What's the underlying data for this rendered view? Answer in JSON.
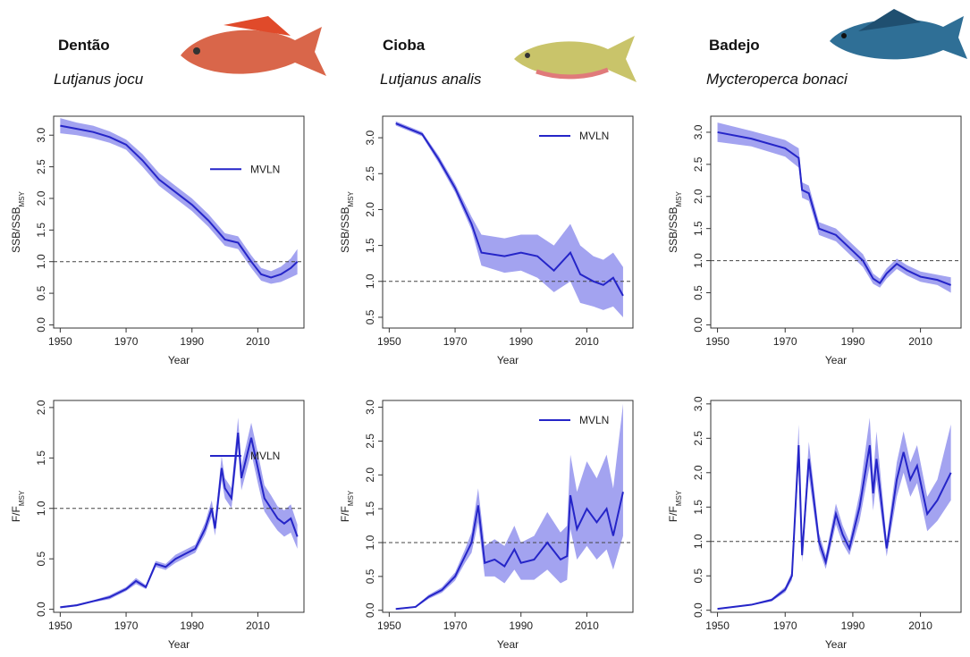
{
  "species": [
    {
      "name": "Dentão",
      "latin": "Lutjanus jocu"
    },
    {
      "name": "Cioba",
      "latin": "Lutjanus analis"
    },
    {
      "name": "Badejo",
      "latin": "Mycteroperca bonaci"
    }
  ],
  "chart_data": [
    {
      "type": "line",
      "xlabel": "Year",
      "ylabel": "SSB/SSB",
      "ylabel_sub": "MSY",
      "legend": "center right",
      "hline": 1,
      "xlim": [
        1948,
        2024
      ],
      "xticks": [
        1950,
        1970,
        1990,
        2010
      ],
      "ylim": [
        -0.05,
        3.3
      ],
      "yticks": [
        {
          "value": 0,
          "label": "0.0"
        },
        0.5,
        {
          "value": 1,
          "label": "1.0"
        },
        1.5,
        {
          "value": 2,
          "label": "2.0"
        },
        2.5,
        {
          "value": 3,
          "label": "3.0"
        }
      ],
      "x": [
        1950,
        1955,
        1960,
        1965,
        1970,
        1975,
        1980,
        1985,
        1990,
        1995,
        2000,
        2004,
        2008,
        2011,
        2014,
        2017,
        2020,
        2022
      ],
      "series": [
        {
          "name": "MVLN",
          "color": "#2525c8",
          "band_color": "#a3a3f0",
          "values": [
            3.15,
            3.1,
            3.05,
            2.97,
            2.85,
            2.6,
            2.3,
            2.1,
            1.9,
            1.65,
            1.35,
            1.3,
            1.0,
            0.8,
            0.75,
            0.8,
            0.9,
            1.0
          ],
          "lower": [
            3.03,
            3.0,
            2.95,
            2.88,
            2.77,
            2.5,
            2.2,
            2.0,
            1.8,
            1.55,
            1.25,
            1.2,
            0.9,
            0.7,
            0.65,
            0.68,
            0.75,
            0.8
          ],
          "upper": [
            3.27,
            3.2,
            3.15,
            3.06,
            2.93,
            2.7,
            2.4,
            2.2,
            2.0,
            1.75,
            1.45,
            1.4,
            1.1,
            0.9,
            0.85,
            0.92,
            1.05,
            1.2
          ]
        }
      ]
    },
    {
      "type": "line",
      "xlabel": "Year",
      "ylabel": "SSB/SSB",
      "ylabel_sub": "MSY",
      "legend": "upper right",
      "hline": 1,
      "xlim": [
        1948,
        2024
      ],
      "xticks": [
        1950,
        1970,
        1990,
        2010
      ],
      "ylim": [
        0.35,
        3.3
      ],
      "yticks": [
        0.5,
        {
          "value": 1,
          "label": "1.0"
        },
        1.5,
        {
          "value": 2,
          "label": "2.0"
        },
        2.5,
        {
          "value": 3,
          "label": "3.0"
        }
      ],
      "x": [
        1952,
        1960,
        1965,
        1970,
        1975,
        1978,
        1985,
        1990,
        1995,
        2000,
        2005,
        2008,
        2012,
        2015,
        2018,
        2021
      ],
      "series": [
        {
          "name": "MVLN",
          "color": "#2525c8",
          "band_color": "#a3a3f0",
          "values": [
            3.2,
            3.05,
            2.7,
            2.3,
            1.8,
            1.4,
            1.35,
            1.4,
            1.35,
            1.15,
            1.4,
            1.1,
            1.0,
            0.95,
            1.05,
            0.8
          ],
          "lower": [
            3.17,
            3.02,
            2.65,
            2.24,
            1.72,
            1.22,
            1.12,
            1.15,
            1.05,
            0.85,
            1.0,
            0.7,
            0.65,
            0.6,
            0.65,
            0.5
          ],
          "upper": [
            3.23,
            3.08,
            2.75,
            2.36,
            1.9,
            1.65,
            1.6,
            1.65,
            1.65,
            1.5,
            1.8,
            1.5,
            1.35,
            1.3,
            1.4,
            1.2
          ]
        }
      ]
    },
    {
      "type": "line",
      "xlabel": "Year",
      "ylabel": "SSB/SSB",
      "ylabel_sub": "MSY",
      "hline": 1,
      "xlim": [
        1948,
        2022
      ],
      "xticks": [
        1950,
        1970,
        1990,
        2010
      ],
      "ylim": [
        -0.05,
        3.25
      ],
      "yticks": [
        {
          "value": 0,
          "label": "0.0"
        },
        0.5,
        {
          "value": 1,
          "label": "1.0"
        },
        1.5,
        {
          "value": 2,
          "label": "2.0"
        },
        2.5,
        {
          "value": 3,
          "label": "3.0"
        }
      ],
      "x": [
        1950,
        1960,
        1970,
        1974,
        1975,
        1977,
        1980,
        1985,
        1990,
        1993,
        1996,
        1998,
        2000,
        2003,
        2006,
        2010,
        2015,
        2019
      ],
      "series": [
        {
          "color": "#2525c8",
          "band_color": "#a3a3f0",
          "values": [
            3.0,
            2.9,
            2.75,
            2.6,
            2.1,
            2.05,
            1.5,
            1.4,
            1.15,
            1.0,
            0.72,
            0.65,
            0.8,
            0.95,
            0.85,
            0.75,
            0.7,
            0.62
          ],
          "lower": [
            2.85,
            2.78,
            2.62,
            2.45,
            1.98,
            1.93,
            1.4,
            1.3,
            1.05,
            0.9,
            0.64,
            0.58,
            0.72,
            0.87,
            0.77,
            0.67,
            0.62,
            0.5
          ],
          "upper": [
            3.15,
            3.02,
            2.88,
            2.75,
            2.22,
            2.17,
            1.6,
            1.5,
            1.25,
            1.1,
            0.8,
            0.72,
            0.88,
            1.03,
            0.93,
            0.83,
            0.78,
            0.74
          ]
        }
      ]
    },
    {
      "type": "line",
      "xlabel": "Year",
      "ylabel": "F/F",
      "ylabel_sub": "MSY",
      "legend": "upper right",
      "hline": 1,
      "xlim": [
        1948,
        2024
      ],
      "xticks": [
        1950,
        1970,
        1990,
        2010
      ],
      "ylim": [
        -0.03,
        2.07
      ],
      "yticks": [
        {
          "value": 0,
          "label": "0.0"
        },
        0.5,
        {
          "value": 1,
          "label": "1.0"
        },
        1.5,
        {
          "value": 2,
          "label": "2.0"
        }
      ],
      "x": [
        1950,
        1955,
        1960,
        1965,
        1970,
        1973,
        1976,
        1979,
        1982,
        1985,
        1988,
        1991,
        1994,
        1996,
        1997,
        1999,
        2000,
        2002,
        2004,
        2005,
        2008,
        2010,
        2012,
        2014,
        2016,
        2018,
        2020,
        2022
      ],
      "series": [
        {
          "name": "MVLN",
          "color": "#2525c8",
          "band_color": "#a3a3f0",
          "values": [
            0.02,
            0.04,
            0.08,
            0.12,
            0.2,
            0.28,
            0.22,
            0.45,
            0.42,
            0.5,
            0.55,
            0.6,
            0.8,
            1.0,
            0.8,
            1.4,
            1.2,
            1.1,
            1.75,
            1.3,
            1.7,
            1.4,
            1.1,
            1.0,
            0.9,
            0.85,
            0.9,
            0.72
          ],
          "lower": [
            0.01,
            0.03,
            0.07,
            0.1,
            0.18,
            0.25,
            0.2,
            0.42,
            0.39,
            0.46,
            0.51,
            0.56,
            0.74,
            0.92,
            0.73,
            1.28,
            1.1,
            1.0,
            1.6,
            1.18,
            1.55,
            1.25,
            0.97,
            0.87,
            0.78,
            0.72,
            0.76,
            0.6
          ],
          "upper": [
            0.03,
            0.05,
            0.09,
            0.14,
            0.22,
            0.31,
            0.24,
            0.48,
            0.45,
            0.54,
            0.59,
            0.64,
            0.86,
            1.08,
            0.87,
            1.52,
            1.3,
            1.2,
            1.9,
            1.42,
            1.85,
            1.55,
            1.23,
            1.13,
            1.02,
            0.98,
            1.04,
            0.84
          ]
        }
      ]
    },
    {
      "type": "line",
      "xlabel": "Year",
      "ylabel": "F/F",
      "ylabel_sub": "MSY",
      "legend": "upper right",
      "hline": 1,
      "xlim": [
        1948,
        2024
      ],
      "xticks": [
        1950,
        1970,
        1990,
        2010
      ],
      "ylim": [
        -0.03,
        3.1
      ],
      "yticks": [
        {
          "value": 0,
          "label": "0.0"
        },
        0.5,
        {
          "value": 1,
          "label": "1.0"
        },
        1.5,
        {
          "value": 2,
          "label": "2.0"
        },
        2.5,
        {
          "value": 3,
          "label": "3.0"
        }
      ],
      "x": [
        1952,
        1958,
        1962,
        1966,
        1970,
        1973,
        1975,
        1977,
        1979,
        1982,
        1985,
        1988,
        1990,
        1994,
        1998,
        2002,
        2004,
        2005,
        2007,
        2010,
        2013,
        2016,
        2018,
        2021
      ],
      "series": [
        {
          "name": "MVLN",
          "color": "#2525c8",
          "band_color": "#a3a3f0",
          "values": [
            0.02,
            0.05,
            0.2,
            0.3,
            0.5,
            0.8,
            1.0,
            1.55,
            0.7,
            0.75,
            0.65,
            0.9,
            0.7,
            0.75,
            1.0,
            0.75,
            0.8,
            1.7,
            1.2,
            1.5,
            1.3,
            1.5,
            1.1,
            1.75
          ],
          "lower": [
            0.01,
            0.04,
            0.17,
            0.26,
            0.44,
            0.7,
            0.85,
            1.3,
            0.5,
            0.5,
            0.4,
            0.6,
            0.45,
            0.45,
            0.6,
            0.4,
            0.45,
            1.2,
            0.75,
            0.95,
            0.75,
            0.9,
            0.6,
            1.1
          ],
          "upper": [
            0.03,
            0.06,
            0.23,
            0.34,
            0.56,
            0.9,
            1.15,
            1.8,
            0.95,
            1.05,
            0.95,
            1.25,
            1.0,
            1.1,
            1.45,
            1.15,
            1.25,
            2.3,
            1.75,
            2.2,
            1.95,
            2.3,
            1.8,
            3.05
          ]
        }
      ]
    },
    {
      "type": "line",
      "xlabel": "Year",
      "ylabel": "F/F",
      "ylabel_sub": "MSY",
      "hline": 1,
      "xlim": [
        1948,
        2022
      ],
      "xticks": [
        1950,
        1970,
        1990,
        2010
      ],
      "ylim": [
        -0.03,
        3.05
      ],
      "yticks": [
        {
          "value": 0,
          "label": "0.0"
        },
        0.5,
        {
          "value": 1,
          "label": "1.0"
        },
        1.5,
        {
          "value": 2,
          "label": "2.0"
        },
        2.5,
        {
          "value": 3,
          "label": "3.0"
        }
      ],
      "x": [
        1950,
        1960,
        1966,
        1970,
        1972,
        1974,
        1975,
        1977,
        1980,
        1982,
        1985,
        1987,
        1989,
        1992,
        1995,
        1996,
        1997,
        2000,
        2003,
        2005,
        2007,
        2009,
        2012,
        2015,
        2019
      ],
      "series": [
        {
          "color": "#2525c8",
          "band_color": "#a3a3f0",
          "values": [
            0.02,
            0.08,
            0.15,
            0.3,
            0.5,
            2.4,
            0.8,
            2.2,
            1.0,
            0.7,
            1.4,
            1.1,
            0.9,
            1.5,
            2.4,
            1.7,
            2.2,
            0.9,
            1.9,
            2.3,
            1.9,
            2.1,
            1.4,
            1.6,
            2.0
          ],
          "lower": [
            0.01,
            0.07,
            0.13,
            0.26,
            0.44,
            2.1,
            0.7,
            1.95,
            0.88,
            0.6,
            1.25,
            0.97,
            0.8,
            1.3,
            2.1,
            1.45,
            1.9,
            0.78,
            1.65,
            2.0,
            1.65,
            1.85,
            1.15,
            1.3,
            1.6
          ],
          "upper": [
            0.03,
            0.09,
            0.17,
            0.34,
            0.56,
            2.7,
            0.9,
            2.45,
            1.12,
            0.8,
            1.55,
            1.23,
            1.0,
            1.7,
            2.8,
            1.95,
            2.6,
            1.02,
            2.15,
            2.6,
            2.15,
            2.4,
            1.65,
            1.9,
            2.7
          ]
        }
      ]
    }
  ]
}
